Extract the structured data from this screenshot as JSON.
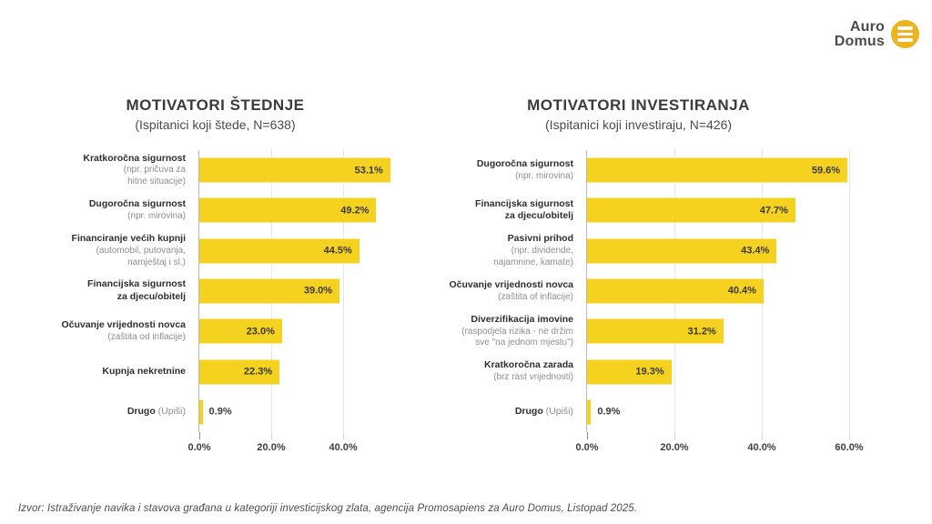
{
  "logo": {
    "line1": "Auro",
    "line2": "Domus",
    "icon": "hamburger-circle-icon",
    "icon_color": "#edb41f"
  },
  "colors": {
    "bar": "#f5d120",
    "axis": "#b9b9b9",
    "grid": "#e7e7e7",
    "text_dark": "#2e2e2e",
    "text_gray": "#8e8e8e"
  },
  "chart_data": [
    {
      "type": "bar",
      "orientation": "horizontal",
      "title": "MOTIVATORI ŠTEDNJE",
      "subtitle": "(Ispitanici koji štede, N=638)",
      "categories": [
        "Kratkoročna sigurnost (npr. pričuva za hitne situacije)",
        "Dugoročna sigurnost (npr. mirovina)",
        "Financiranje većih kupnji (automobil, putovanja, namještaj i sl.)",
        "Financijska sigurnost za djecu/obitelj",
        "Očuvanje vrijednosti novca (zaštita od inflacije)",
        "Kupnja nekretnine",
        "Drugo (Upiši)"
      ],
      "values": [
        53.1,
        49.2,
        44.5,
        39.0,
        23.0,
        22.3,
        0.9
      ],
      "xlim": [
        0,
        57.7
      ],
      "grid": true,
      "legend": false,
      "x_ticks": [
        {
          "value": 0,
          "label": "0.0%"
        },
        {
          "value": 20,
          "label": "20.0%"
        },
        {
          "value": 40,
          "label": "40.0%"
        }
      ],
      "rows": [
        {
          "label_lines": [
            "Kratkoročna sigurnost"
          ],
          "note_lines": [
            "(npr. pričuva za",
            "hitne situacije)"
          ],
          "note_inline": "",
          "value": 53.1,
          "value_label": "53.1%"
        },
        {
          "label_lines": [
            "Dugoročna sigurnost"
          ],
          "note_lines": [
            "(npr. mirovina)"
          ],
          "note_inline": "",
          "value": 49.2,
          "value_label": "49.2%"
        },
        {
          "label_lines": [
            "Financiranje većih kupnji"
          ],
          "note_lines": [
            "(automobil, putovanja,",
            "namještaj i sl.)"
          ],
          "note_inline": "",
          "value": 44.5,
          "value_label": "44.5%"
        },
        {
          "label_lines": [
            "Financijska sigurnost",
            "za djecu/obitelj"
          ],
          "note_lines": [],
          "note_inline": "",
          "value": 39.0,
          "value_label": "39.0%"
        },
        {
          "label_lines": [
            "Očuvanje vrijednosti novca"
          ],
          "note_lines": [
            "(zaštita od inflacije)"
          ],
          "note_inline": "",
          "value": 23.0,
          "value_label": "23.0%"
        },
        {
          "label_lines": [
            "Kupnja nekretnine"
          ],
          "note_lines": [],
          "note_inline": "",
          "value": 22.3,
          "value_label": "22.3%"
        },
        {
          "label_lines": [
            "Drugo"
          ],
          "note_lines": [],
          "note_inline": "(Upiši)",
          "value": 0.9,
          "value_label": "0.9%"
        }
      ]
    },
    {
      "type": "bar",
      "orientation": "horizontal",
      "title": "MOTIVATORI INVESTIRANJA",
      "subtitle": "(Ispitanici koji investiraju, N=426)",
      "categories": [
        "Dugoročna sigurnost (npr. mirovina)",
        "Financijska sigurnost za djecu/obitelj",
        "Pasivni prihod (npr. dividende, najamnine, kamate)",
        "Očuvanje vrijednosti novca (zaštita of inflacije)",
        "Diverzifikacija imovine (raspodjela rizika - ne držim sve \"na jednom mjestu\")",
        "Kratkoročna zarada (brz rast vrijednosti)",
        "Drugo (Upiši)"
      ],
      "values": [
        59.6,
        47.7,
        43.4,
        40.4,
        31.2,
        19.3,
        0.9
      ],
      "xlim": [
        0,
        63.75
      ],
      "grid": true,
      "legend": false,
      "x_ticks": [
        {
          "value": 0,
          "label": "0.0%"
        },
        {
          "value": 20,
          "label": "20.0%"
        },
        {
          "value": 40,
          "label": "40.0%"
        },
        {
          "value": 60,
          "label": "60.0%"
        }
      ],
      "rows": [
        {
          "label_lines": [
            "Dugoročna sigurnost"
          ],
          "note_lines": [
            "(npr. mirovina)"
          ],
          "note_inline": "",
          "value": 59.6,
          "value_label": "59.6%"
        },
        {
          "label_lines": [
            "Financijska sigurnost",
            "za djecu/obitelj"
          ],
          "note_lines": [],
          "note_inline": "",
          "value": 47.7,
          "value_label": "47.7%"
        },
        {
          "label_lines": [
            "Pasivni prihod"
          ],
          "note_lines": [
            "(npr. dividende,",
            "najamnine, kamate)"
          ],
          "note_inline": "",
          "value": 43.4,
          "value_label": "43.4%"
        },
        {
          "label_lines": [
            "Očuvanje vrijednosti novca"
          ],
          "note_lines": [
            "(zaštita of inflacije)"
          ],
          "note_inline": "",
          "value": 40.4,
          "value_label": "40.4%"
        },
        {
          "label_lines": [
            "Diverzifikacija imovine"
          ],
          "note_lines": [
            "(raspodjela rizika - ne držim",
            "sve \"na jednom mjestu\")"
          ],
          "note_inline": "",
          "value": 31.2,
          "value_label": "31.2%"
        },
        {
          "label_lines": [
            "Kratkoročna zarada"
          ],
          "note_lines": [
            "(brz rast vrijednosti)"
          ],
          "note_inline": "",
          "value": 19.3,
          "value_label": "19.3%"
        },
        {
          "label_lines": [
            "Drugo"
          ],
          "note_lines": [],
          "note_inline": "(Upiši)",
          "value": 0.9,
          "value_label": "0.9%"
        }
      ]
    }
  ],
  "footer": {
    "source": "Izvor: Istraživanje navika i stavova građana u kategoriji investicijskog zlata, agencija Promosapiens za Auro Domus, Listopad 2025."
  }
}
